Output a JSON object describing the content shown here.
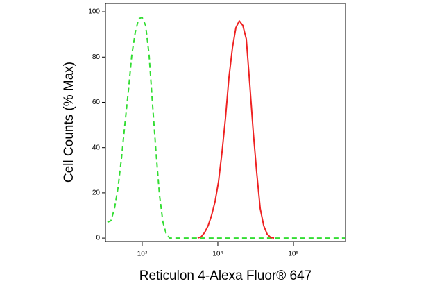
{
  "chart_data": {
    "type": "line",
    "log_x": true,
    "x_label": "Reticulon 4-Alexa Fluor® 647",
    "y_label": "Cell Counts (% Max)",
    "xlim": [
      327,
      487000
    ],
    "ylim": [
      -1.5,
      103.7
    ],
    "xticks": [
      {
        "value": 1000,
        "label": "10³"
      },
      {
        "value": 10000,
        "label": "10⁴"
      },
      {
        "value": 100000,
        "label": "10⁵"
      }
    ],
    "yticks": [
      0,
      20,
      40,
      60,
      80,
      100
    ],
    "series": [
      {
        "color": "#33dd33",
        "dashed": true,
        "x": [
          348,
          386,
          430,
          478,
          531,
          590,
          656,
          729,
          810,
          900,
          1000,
          1111,
          1235,
          1373,
          1525,
          1695,
          1884,
          2094,
          2327,
          3000,
          10000,
          100000,
          487000
        ],
        "values": [
          7,
          7.7,
          13,
          22,
          35,
          50,
          65,
          81,
          91,
          97,
          97.5,
          94,
          81,
          59,
          38,
          19,
          7,
          1.5,
          0,
          0,
          0,
          0,
          0
        ]
      },
      {
        "color": "#ee2222",
        "dashed": false,
        "x": [
          5420,
          6030,
          6700,
          7450,
          8260,
          9180,
          10210,
          11350,
          12620,
          14030,
          15590,
          17330,
          19230,
          21380,
          23770,
          26420,
          29380,
          32660,
          36310,
          40360,
          44770,
          49770,
          55340
        ],
        "values": [
          0,
          0.6,
          2.5,
          5.5,
          10,
          16,
          25,
          38,
          53,
          71,
          84,
          93,
          96,
          94,
          88,
          68,
          47,
          29,
          13,
          5.5,
          1.8,
          0.3,
          0
        ]
      }
    ]
  }
}
